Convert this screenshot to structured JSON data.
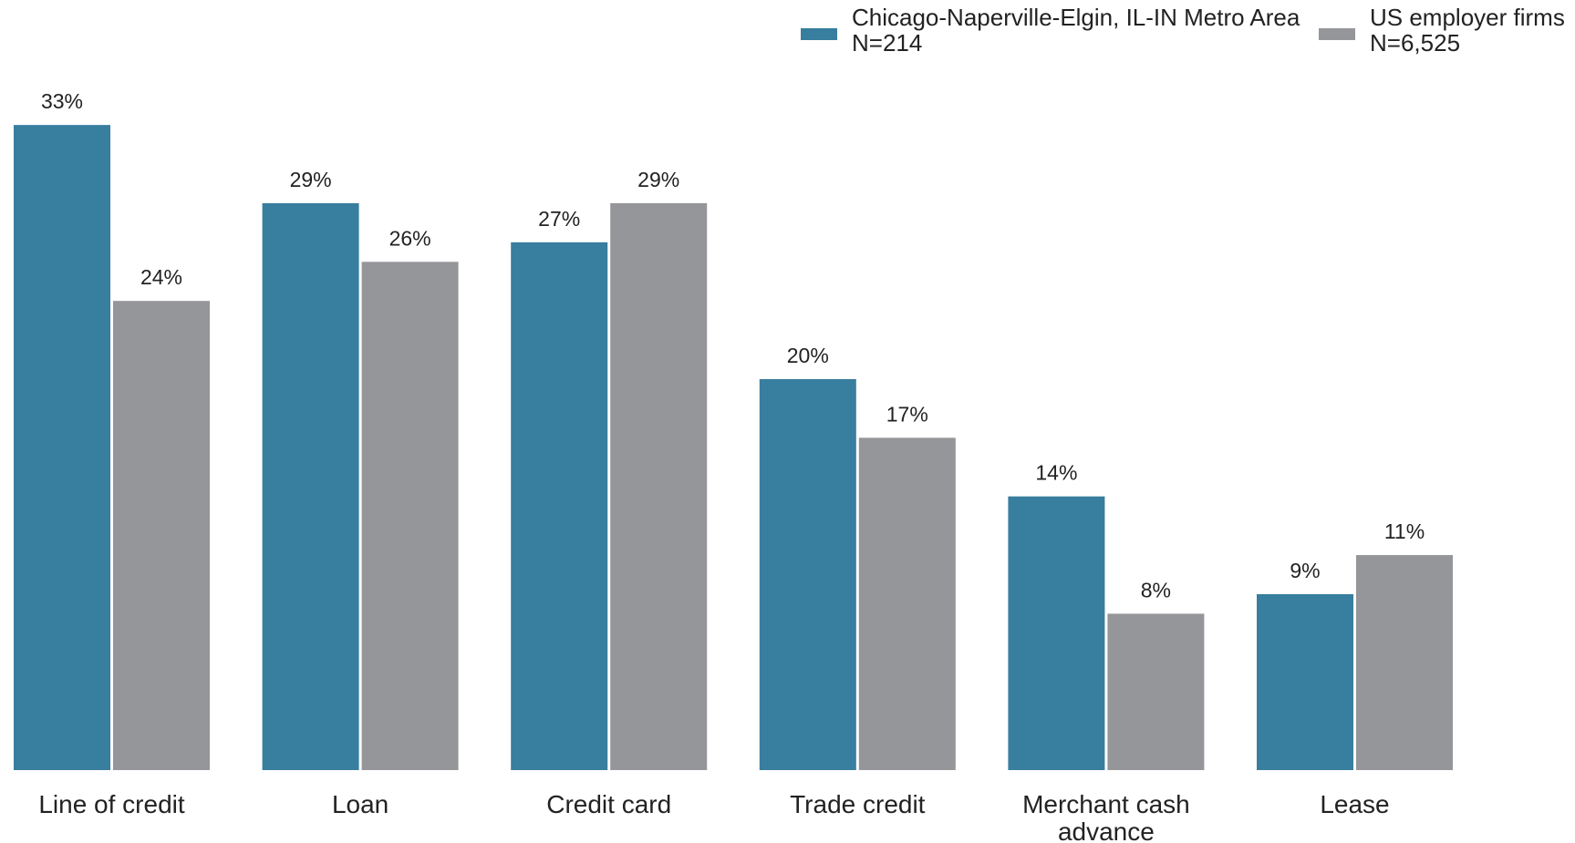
{
  "chart_data": {
    "type": "bar",
    "title": "",
    "xlabel": "",
    "ylabel": "",
    "ylim": [
      0,
      35
    ],
    "grid": false,
    "legend_position": "top-right",
    "categories": [
      "Line of credit",
      "Loan",
      "Credit card",
      "Trade credit",
      "Merchant cash advance",
      "Lease"
    ],
    "series": [
      {
        "name": "Chicago-Naperville-Elgin, IL-IN Metro Area",
        "sample": "N=214",
        "color": "#387e9e",
        "values": [
          33,
          29,
          27,
          20,
          14,
          9
        ],
        "labels": [
          "33%",
          "29%",
          "27%",
          "20%",
          "14%",
          "9%"
        ]
      },
      {
        "name": "US employer firms",
        "sample": "N=6,525",
        "color": "#959699",
        "values": [
          24,
          26,
          29,
          17,
          8,
          11
        ],
        "labels": [
          "24%",
          "26%",
          "29%",
          "17%",
          "8%",
          "11%"
        ]
      }
    ]
  }
}
